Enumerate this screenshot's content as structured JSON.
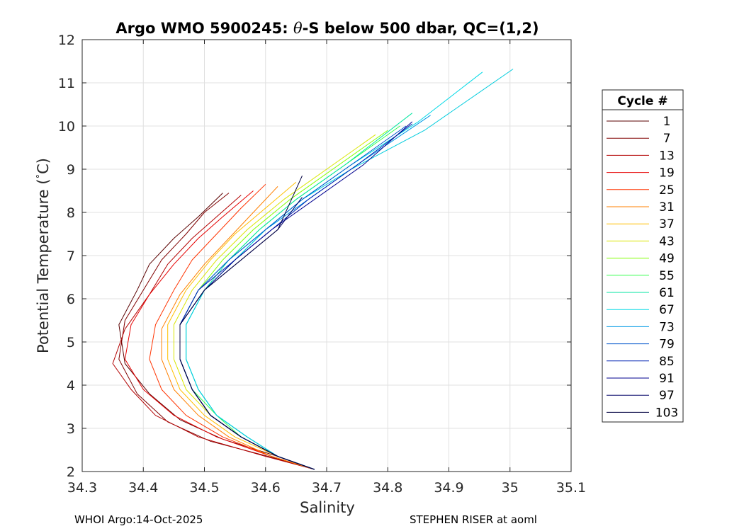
{
  "chart_data": {
    "type": "line",
    "title_parts": {
      "prefix": "Argo WMO 5900245: ",
      "theta": "θ",
      "suffix": "-S below 500 dbar,  QC=(1,2)"
    },
    "xlabel": "Salinity",
    "ylabel": "Potential Temperature (",
    "ylabel_degree": "°",
    "ylabel_unit": "C)",
    "xlim": [
      34.3,
      35.1
    ],
    "ylim": [
      2,
      12
    ],
    "xticks": [
      "34.3",
      "34.4",
      "34.5",
      "34.6",
      "34.7",
      "34.8",
      "34.9",
      "35",
      "35.1"
    ],
    "yticks": [
      "2",
      "3",
      "4",
      "5",
      "6",
      "7",
      "8",
      "9",
      "10",
      "11",
      "12"
    ],
    "grid": true,
    "legend": {
      "title": "Cycle #",
      "placement": "outside-right",
      "entries": [
        {
          "label": "1",
          "color": "#5a0000"
        },
        {
          "label": "7",
          "color": "#800000"
        },
        {
          "label": "13",
          "color": "#b30000"
        },
        {
          "label": "19",
          "color": "#e60000"
        },
        {
          "label": "25",
          "color": "#ff3300"
        },
        {
          "label": "31",
          "color": "#ff8000"
        },
        {
          "label": "37",
          "color": "#ffbf00"
        },
        {
          "label": "43",
          "color": "#d9e600"
        },
        {
          "label": "49",
          "color": "#80ff00"
        },
        {
          "label": "55",
          "color": "#33ff4d"
        },
        {
          "label": "61",
          "color": "#00e6a0"
        },
        {
          "label": "67",
          "color": "#00d9e6"
        },
        {
          "label": "73",
          "color": "#0099e6"
        },
        {
          "label": "79",
          "color": "#0055cc"
        },
        {
          "label": "85",
          "color": "#0022b3"
        },
        {
          "label": "91",
          "color": "#00008f"
        },
        {
          "label": "97",
          "color": "#000066"
        },
        {
          "label": "103",
          "color": "#000040"
        }
      ]
    },
    "series": [
      {
        "color": "#5a0000",
        "x": [
          34.68,
          34.62,
          34.53,
          34.46,
          34.41,
          34.37,
          34.36,
          34.39,
          34.41,
          34.45,
          34.49,
          34.53
        ],
        "y": [
          2.05,
          2.35,
          2.75,
          3.2,
          3.8,
          4.5,
          5.4,
          6.2,
          6.8,
          7.4,
          7.9,
          8.45
        ]
      },
      {
        "color": "#800000",
        "x": [
          34.68,
          34.61,
          34.51,
          34.44,
          34.39,
          34.36,
          34.37,
          34.4,
          34.43,
          34.47,
          34.5,
          34.54
        ],
        "y": [
          2.05,
          2.33,
          2.7,
          3.15,
          3.8,
          4.6,
          5.5,
          6.2,
          6.9,
          7.5,
          8.0,
          8.45
        ]
      },
      {
        "color": "#b30000",
        "x": [
          34.68,
          34.6,
          34.49,
          34.42,
          34.38,
          34.35,
          34.37,
          34.41,
          34.44,
          34.48,
          34.52,
          34.56
        ],
        "y": [
          2.05,
          2.35,
          2.8,
          3.3,
          3.9,
          4.5,
          5.3,
          6.1,
          6.8,
          7.4,
          7.9,
          8.4
        ]
      },
      {
        "color": "#e60000",
        "x": [
          34.68,
          34.61,
          34.52,
          34.45,
          34.4,
          34.37,
          34.38,
          34.41,
          34.45,
          34.49,
          34.53,
          34.58
        ],
        "y": [
          2.05,
          2.35,
          2.8,
          3.3,
          3.9,
          4.6,
          5.4,
          6.1,
          6.8,
          7.4,
          7.9,
          8.5
        ]
      },
      {
        "color": "#ff3300",
        "x": [
          34.68,
          34.61,
          34.53,
          34.47,
          34.43,
          34.41,
          34.42,
          34.45,
          34.48,
          34.52,
          34.56,
          34.6
        ],
        "y": [
          2.05,
          2.35,
          2.8,
          3.3,
          3.9,
          4.6,
          5.4,
          6.2,
          6.9,
          7.5,
          8.1,
          8.65
        ]
      },
      {
        "color": "#ff8000",
        "x": [
          34.68,
          34.61,
          34.54,
          34.49,
          34.45,
          34.43,
          34.43,
          34.46,
          34.5,
          34.54,
          34.58,
          34.62
        ],
        "y": [
          2.05,
          2.35,
          2.8,
          3.3,
          3.9,
          4.6,
          5.3,
          6.1,
          6.8,
          7.4,
          8.0,
          8.6
        ]
      },
      {
        "color": "#ffbf00",
        "x": [
          34.68,
          34.62,
          34.55,
          34.5,
          34.46,
          34.44,
          34.44,
          34.47,
          34.51,
          34.55,
          34.6,
          34.65
        ],
        "y": [
          2.05,
          2.35,
          2.8,
          3.3,
          3.9,
          4.6,
          5.4,
          6.2,
          6.9,
          7.5,
          8.1,
          8.7
        ]
      },
      {
        "color": "#d9e600",
        "x": [
          34.68,
          34.62,
          34.56,
          34.51,
          34.47,
          34.45,
          34.45,
          34.48,
          34.52,
          34.57,
          34.63,
          34.7,
          34.78
        ],
        "y": [
          2.05,
          2.35,
          2.8,
          3.3,
          3.9,
          4.6,
          5.4,
          6.2,
          6.9,
          7.6,
          8.3,
          9.0,
          9.8
        ]
      },
      {
        "color": "#80ff00",
        "x": [
          34.68,
          34.62,
          34.56,
          34.51,
          34.48,
          34.46,
          34.46,
          34.49,
          34.53,
          34.58,
          34.64,
          34.72,
          34.8
        ],
        "y": [
          2.05,
          2.35,
          2.8,
          3.3,
          3.9,
          4.6,
          5.4,
          6.2,
          6.9,
          7.6,
          8.3,
          9.1,
          9.9
        ]
      },
      {
        "color": "#33ff4d",
        "x": [
          34.68,
          34.62,
          34.56,
          34.52,
          34.48,
          34.46,
          34.46,
          34.49,
          34.54,
          34.59,
          34.65,
          34.73,
          34.82
        ],
        "y": [
          2.05,
          2.35,
          2.8,
          3.3,
          3.9,
          4.6,
          5.4,
          6.2,
          6.9,
          7.6,
          8.3,
          9.1,
          10.0
        ]
      },
      {
        "color": "#00e6a0",
        "x": [
          34.68,
          34.62,
          34.57,
          34.52,
          34.49,
          34.47,
          34.47,
          34.5,
          34.54,
          34.59,
          34.65,
          34.73,
          34.84
        ],
        "y": [
          2.05,
          2.35,
          2.8,
          3.3,
          3.9,
          4.6,
          5.4,
          6.2,
          6.9,
          7.6,
          8.3,
          9.1,
          10.3
        ]
      },
      {
        "color": "#00d9e6",
        "x": [
          34.68,
          34.62,
          34.57,
          34.52,
          34.49,
          34.47,
          34.47,
          34.5,
          34.55,
          34.6,
          34.66,
          34.74,
          34.85,
          34.955
        ],
        "y": [
          2.05,
          2.35,
          2.8,
          3.3,
          3.9,
          4.6,
          5.4,
          6.2,
          6.9,
          7.6,
          8.3,
          9.1,
          10.1,
          11.25
        ]
      },
      {
        "color": "#00ccdd",
        "x": [
          34.68,
          34.62,
          34.57,
          34.52,
          34.49,
          34.47,
          34.47,
          34.5,
          34.55,
          34.6,
          34.66,
          34.74,
          34.86,
          35.005
        ],
        "y": [
          2.05,
          2.35,
          2.8,
          3.3,
          3.9,
          4.6,
          5.4,
          6.2,
          6.9,
          7.6,
          8.3,
          9.0,
          9.9,
          11.32
        ]
      },
      {
        "color": "#0099e6",
        "x": [
          34.68,
          34.62,
          34.56,
          34.51,
          34.48,
          34.46,
          34.46,
          34.49,
          34.54,
          34.6,
          34.67,
          34.76,
          34.87
        ],
        "y": [
          2.05,
          2.35,
          2.8,
          3.3,
          3.9,
          4.6,
          5.4,
          6.2,
          6.9,
          7.6,
          8.3,
          9.2,
          10.25
        ]
      },
      {
        "color": "#0055cc",
        "x": [
          34.68,
          34.62,
          34.56,
          34.51,
          34.48,
          34.46,
          34.46,
          34.49,
          34.54,
          34.6,
          34.66,
          34.74,
          34.83
        ],
        "y": [
          2.05,
          2.35,
          2.8,
          3.3,
          3.9,
          4.6,
          5.4,
          6.2,
          6.9,
          7.6,
          8.3,
          9.1,
          10.0
        ]
      },
      {
        "color": "#0022b3",
        "x": [
          34.68,
          34.62,
          34.56,
          34.51,
          34.48,
          34.46,
          34.46,
          34.49,
          34.55,
          34.61,
          34.67,
          34.75,
          34.84
        ],
        "y": [
          2.05,
          2.35,
          2.8,
          3.3,
          3.9,
          4.6,
          5.4,
          6.2,
          6.9,
          7.6,
          8.3,
          9.1,
          10.05
        ]
      },
      {
        "color": "#00008f",
        "x": [
          34.68,
          34.62,
          34.56,
          34.51,
          34.48,
          34.46,
          34.46,
          34.5,
          34.55,
          34.61,
          34.68,
          34.76,
          34.84
        ],
        "y": [
          2.05,
          2.35,
          2.8,
          3.3,
          3.9,
          4.6,
          5.4,
          6.2,
          6.9,
          7.6,
          8.3,
          9.1,
          10.1
        ]
      },
      {
        "color": "#000066",
        "x": [
          34.68,
          34.62,
          34.56,
          34.51,
          34.48,
          34.46,
          34.46,
          34.5,
          34.56,
          34.62,
          34.66
        ],
        "y": [
          2.05,
          2.35,
          2.8,
          3.3,
          3.9,
          4.6,
          5.4,
          6.2,
          6.9,
          7.6,
          8.35
        ]
      },
      {
        "color": "#000040",
        "x": [
          34.68,
          34.62,
          34.56,
          34.51,
          34.48,
          34.46,
          34.46,
          34.5,
          34.56,
          34.62,
          34.66
        ],
        "y": [
          2.05,
          2.35,
          2.8,
          3.3,
          3.9,
          4.6,
          5.4,
          6.2,
          6.9,
          7.6,
          8.85
        ]
      }
    ]
  },
  "footer": {
    "left": "WHOI Argo:14-Oct-2025",
    "right": "STEPHEN RISER at aoml"
  }
}
